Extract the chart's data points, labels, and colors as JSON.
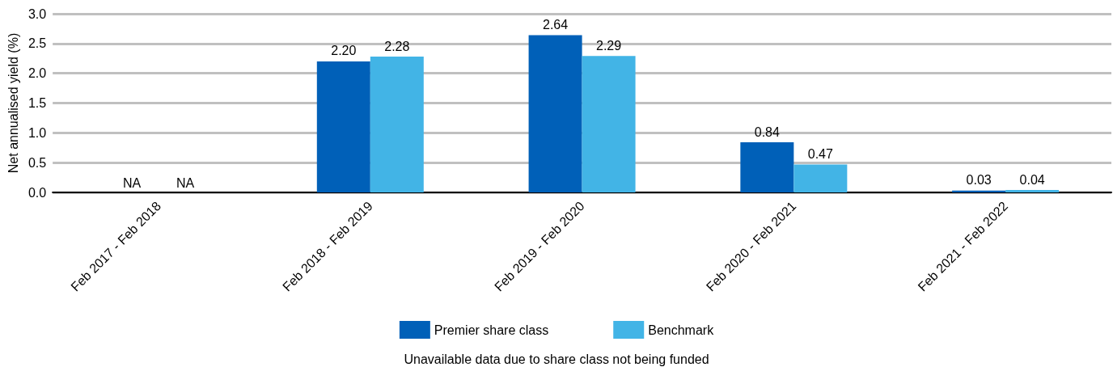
{
  "chart_data": {
    "type": "bar",
    "ylabel": "Net annualised yield (%)",
    "categories": [
      "Feb 2017 - Feb 2018",
      "Feb 2018 - Feb 2019",
      "Feb 2019 - Feb 2020",
      "Feb 2020 - Feb 2021",
      "Feb 2021 - Feb 2022"
    ],
    "series": [
      {
        "name": "Premier share class",
        "color": "#0060b8",
        "values": [
          null,
          2.2,
          2.64,
          0.84,
          0.03
        ],
        "value_labels": [
          "NA",
          "2.20",
          "2.64",
          "0.84",
          "0.03"
        ]
      },
      {
        "name": "Benchmark",
        "color": "#42b4e6",
        "values": [
          null,
          2.28,
          2.29,
          0.47,
          0.04
        ],
        "value_labels": [
          "NA",
          "2.28",
          "2.29",
          "0.47",
          "0.04"
        ]
      }
    ],
    "ylim": [
      0,
      3.0
    ],
    "yticks": [
      {
        "value": 0,
        "label": "0.0"
      },
      {
        "value": 0.5,
        "label": "0.5"
      },
      {
        "value": 1,
        "label": "1.0"
      },
      {
        "value": 1.5,
        "label": "1.5"
      },
      {
        "value": 2,
        "label": "2.0"
      },
      {
        "value": 2.5,
        "label": "2.5"
      },
      {
        "value": 3,
        "label": "3.0"
      }
    ],
    "grid": "y",
    "legend": "bottom",
    "annotations": [
      "Unavailable data due to share class not being funded"
    ]
  }
}
